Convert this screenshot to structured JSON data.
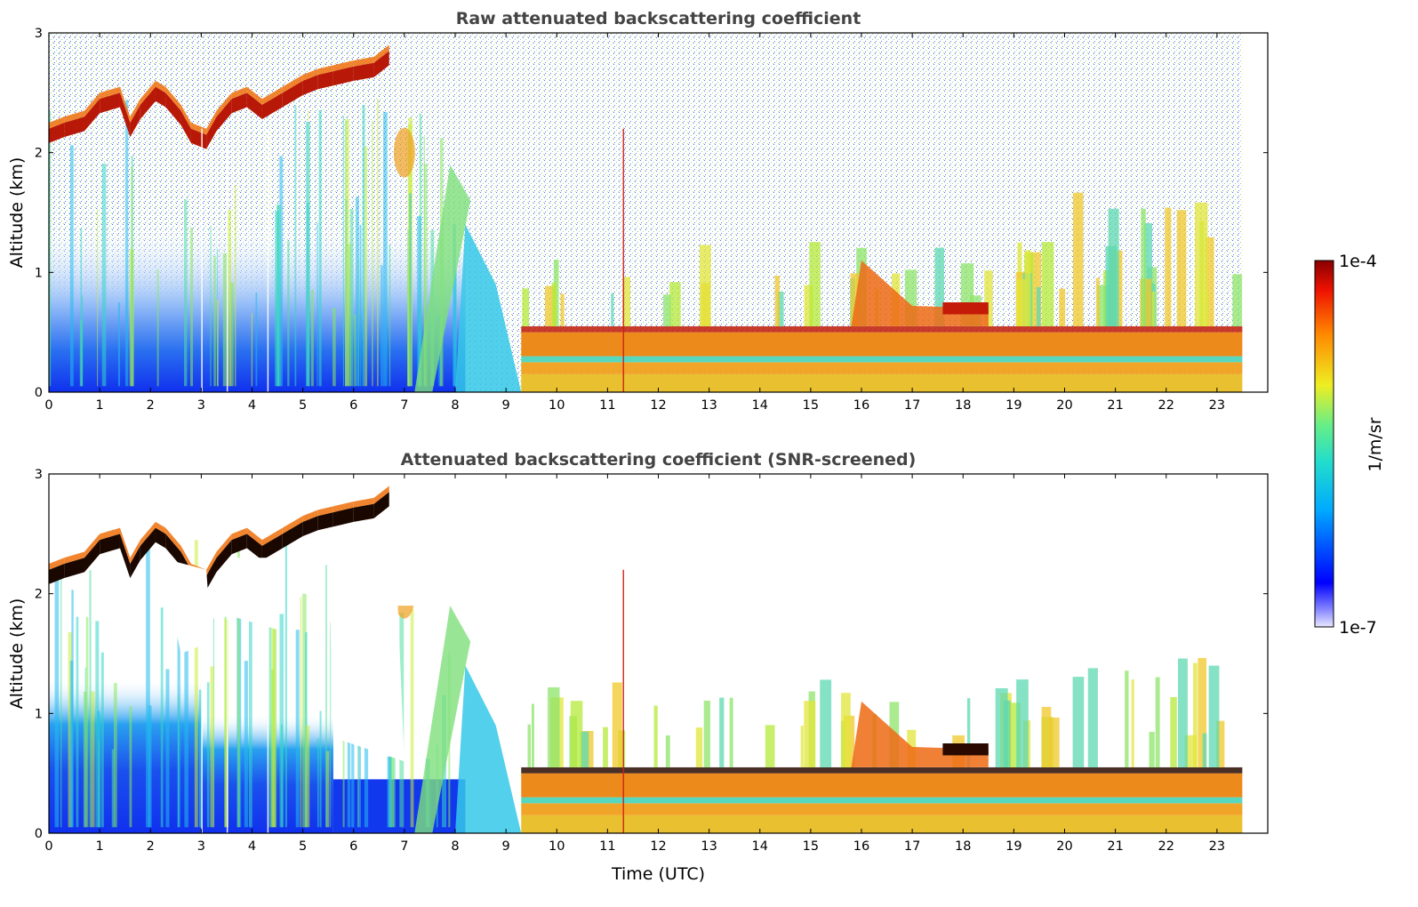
{
  "chart_data": [
    {
      "type": "heatmap",
      "title": "Raw attenuated backscattering coefficient",
      "xlabel": "",
      "ylabel": "Altitude (km)",
      "xlim": [
        0,
        24
      ],
      "ylim": [
        0,
        3
      ],
      "x_ticks": [
        "0",
        "1",
        "2",
        "3",
        "4",
        "5",
        "6",
        "7",
        "8",
        "9",
        "10",
        "11",
        "12",
        "13",
        "14",
        "15",
        "16",
        "17",
        "18",
        "19",
        "20",
        "21",
        "22",
        "23"
      ],
      "y_ticks": [
        "0",
        "1",
        "2",
        "3"
      ],
      "x_tick_values": [
        0,
        1,
        2,
        3,
        4,
        5,
        6,
        7,
        8,
        9,
        10,
        11,
        12,
        13,
        14,
        15,
        16,
        17,
        18,
        19,
        20,
        21,
        22,
        23
      ],
      "y_tick_values": [
        0,
        1,
        2,
        3
      ],
      "data_end_hour": 23.5,
      "screened": false
    },
    {
      "type": "heatmap",
      "title": "Attenuated backscattering coefficient (SNR-screened)",
      "xlabel": "Time (UTC)",
      "ylabel": "Altitude (km)",
      "xlim": [
        0,
        24
      ],
      "ylim": [
        0,
        3
      ],
      "x_ticks": [
        "0",
        "1",
        "2",
        "3",
        "4",
        "5",
        "6",
        "7",
        "8",
        "9",
        "10",
        "11",
        "12",
        "13",
        "14",
        "15",
        "16",
        "17",
        "18",
        "19",
        "20",
        "21",
        "22",
        "23"
      ],
      "y_ticks": [
        "0",
        "1",
        "2",
        "3"
      ],
      "x_tick_values": [
        0,
        1,
        2,
        3,
        4,
        5,
        6,
        7,
        8,
        9,
        10,
        11,
        12,
        13,
        14,
        15,
        16,
        17,
        18,
        19,
        20,
        21,
        22,
        23
      ],
      "y_tick_values": [
        0,
        1,
        2,
        3
      ],
      "data_end_hour": 23.5,
      "screened": true
    }
  ],
  "colorbar": {
    "label": "1/m/sr",
    "min_label": "1e-7",
    "max_label": "1e-4",
    "scale": "log",
    "range": [
      1e-07,
      0.0001
    ]
  },
  "features": {
    "cloud_top_layer_hours": [
      0,
      6.8
    ],
    "boundary_layer_start_hour": 9.3,
    "boundary_layer_top_km": 0.45
  }
}
